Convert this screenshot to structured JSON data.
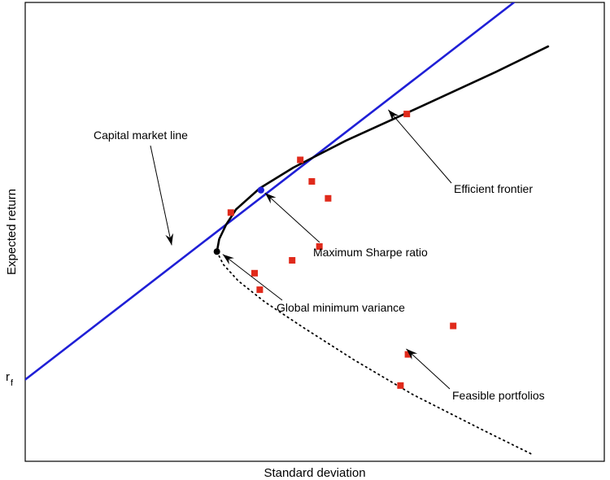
{
  "chart_data": {
    "type": "scatter",
    "xlabel": "Standard deviation",
    "ylabel": "Expected return",
    "x_ticks": [],
    "y_ticks": [
      "r_f"
    ],
    "xlim": [
      0,
      1
    ],
    "ylim": [
      0,
      1
    ],
    "grid": false,
    "risk_free_label": {
      "base": "r",
      "sub": "f"
    },
    "risk_free_rate": 0.178,
    "series": [
      {
        "kind": "line",
        "role": "capital_market_line",
        "color": "#1f1fd6",
        "points": [
          [
            0.0,
            0.178
          ],
          [
            0.844,
            1.0
          ]
        ]
      },
      {
        "kind": "line",
        "role": "efficient_frontier",
        "color": "#000000",
        "points": [
          [
            0.331,
            0.457
          ],
          [
            0.335,
            0.484
          ],
          [
            0.347,
            0.516
          ],
          [
            0.364,
            0.549
          ],
          [
            0.405,
            0.595
          ],
          [
            0.463,
            0.64
          ],
          [
            0.554,
            0.699
          ],
          [
            0.678,
            0.77
          ],
          [
            0.812,
            0.848
          ],
          [
            0.903,
            0.904
          ]
        ]
      },
      {
        "kind": "line",
        "role": "inefficient_frontier",
        "color": "#000000",
        "dashed": true,
        "points": [
          [
            0.331,
            0.457
          ],
          [
            0.342,
            0.429
          ],
          [
            0.368,
            0.393
          ],
          [
            0.414,
            0.347
          ],
          [
            0.482,
            0.29
          ],
          [
            0.568,
            0.221
          ],
          [
            0.67,
            0.145
          ],
          [
            0.792,
            0.067
          ],
          [
            0.874,
            0.016
          ]
        ]
      },
      {
        "kind": "scatter",
        "role": "feasible_portfolios",
        "color": "#e02a1b",
        "points": [
          [
            0.355,
            0.542
          ],
          [
            0.475,
            0.657
          ],
          [
            0.495,
            0.61
          ],
          [
            0.523,
            0.573
          ],
          [
            0.508,
            0.468
          ],
          [
            0.461,
            0.438
          ],
          [
            0.396,
            0.41
          ],
          [
            0.405,
            0.374
          ],
          [
            0.659,
            0.757
          ],
          [
            0.739,
            0.295
          ],
          [
            0.661,
            0.233
          ],
          [
            0.648,
            0.165
          ]
        ]
      }
    ],
    "points": {
      "max_sharpe": {
        "x": 0.407,
        "y": 0.591,
        "color": "#1f1fd6"
      },
      "global_min_variance": {
        "x": 0.331,
        "y": 0.457,
        "color": "#000000"
      }
    },
    "annotations": [
      {
        "text": "Capital market line",
        "target": [
          0.253,
          0.471
        ]
      },
      {
        "text": "Efficient frontier",
        "target": [
          0.627,
          0.766
        ]
      },
      {
        "text": "Maximum Sharpe ratio",
        "target": [
          0.414,
          0.585
        ]
      },
      {
        "text": "Global minimum variance",
        "target": [
          0.341,
          0.451
        ]
      },
      {
        "text": "Feasible portfolios",
        "target": [
          0.658,
          0.245
        ]
      }
    ]
  }
}
